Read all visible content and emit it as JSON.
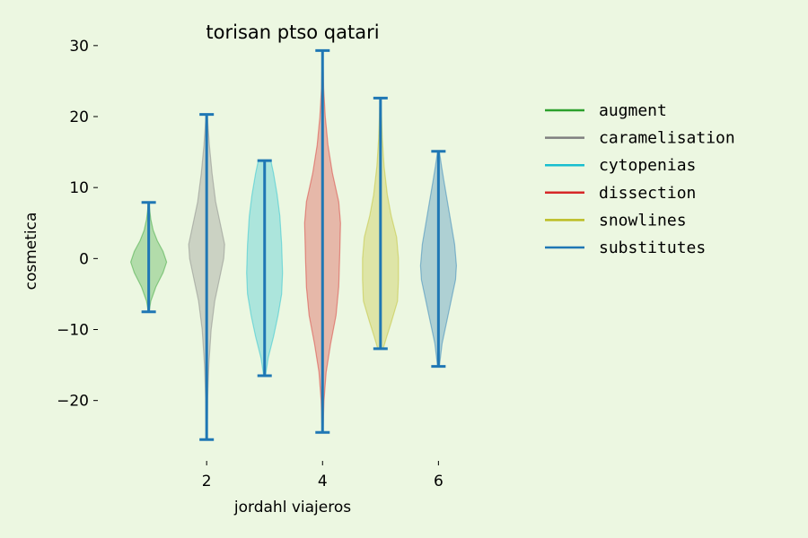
{
  "chart_data": {
    "type": "violin",
    "title": "torisan ptso qatari",
    "xlabel": "jordahl viajeros",
    "ylabel": "cosmetica",
    "xlim": [
      0.2,
      6.8
    ],
    "ylim": [
      -28,
      32
    ],
    "xticks": [
      2,
      4,
      6
    ],
    "yticks": [
      -20,
      -10,
      0,
      10,
      20,
      30
    ],
    "grid": false,
    "legend_position": "right",
    "whisker_color": "#1f77b4",
    "series": [
      {
        "name": "augment",
        "position": 1,
        "color": "#2ca02c",
        "min": -7.5,
        "max": 7.9,
        "profile": [
          [
            -7.5,
            0.02
          ],
          [
            -6,
            0.12
          ],
          [
            -4,
            0.4
          ],
          [
            -2,
            0.8
          ],
          [
            -0.5,
            1.0
          ],
          [
            1,
            0.8
          ],
          [
            2.5,
            0.48
          ],
          [
            4,
            0.25
          ],
          [
            5.5,
            0.12
          ],
          [
            7,
            0.05
          ],
          [
            7.9,
            0.02
          ]
        ]
      },
      {
        "name": "caramelisation",
        "position": 2,
        "color": "#7f7f7f",
        "min": -25.5,
        "max": 20.3,
        "profile": [
          [
            -25.5,
            0.02
          ],
          [
            -20,
            0.05
          ],
          [
            -15,
            0.12
          ],
          [
            -10,
            0.25
          ],
          [
            -6,
            0.45
          ],
          [
            -3,
            0.7
          ],
          [
            0,
            0.95
          ],
          [
            2,
            1.0
          ],
          [
            5,
            0.75
          ],
          [
            8,
            0.5
          ],
          [
            12,
            0.3
          ],
          [
            16,
            0.15
          ],
          [
            20.3,
            0.03
          ]
        ]
      },
      {
        "name": "cytopenias",
        "position": 3,
        "color": "#17becf",
        "min": -16.5,
        "max": 13.8,
        "profile": [
          [
            -16.5,
            0.05
          ],
          [
            -14,
            0.2
          ],
          [
            -11,
            0.5
          ],
          [
            -8,
            0.75
          ],
          [
            -5,
            0.95
          ],
          [
            -2,
            1.0
          ],
          [
            2,
            0.95
          ],
          [
            6,
            0.85
          ],
          [
            9,
            0.7
          ],
          [
            12,
            0.5
          ],
          [
            13.8,
            0.35
          ]
        ]
      },
      {
        "name": "dissection",
        "position": 4,
        "color": "#d62728",
        "min": -24.5,
        "max": 29.3,
        "profile": [
          [
            -24.5,
            0.02
          ],
          [
            -20,
            0.08
          ],
          [
            -16,
            0.2
          ],
          [
            -12,
            0.45
          ],
          [
            -8,
            0.75
          ],
          [
            -4,
            0.9
          ],
          [
            0,
            0.95
          ],
          [
            5,
            1.0
          ],
          [
            8,
            0.9
          ],
          [
            12,
            0.55
          ],
          [
            16,
            0.3
          ],
          [
            20,
            0.15
          ],
          [
            24,
            0.06
          ],
          [
            29.3,
            0.01
          ]
        ]
      },
      {
        "name": "snowlines",
        "position": 5,
        "color": "#bcbd22",
        "min": -12.7,
        "max": 22.6,
        "profile": [
          [
            -12.7,
            0.15
          ],
          [
            -11,
            0.35
          ],
          [
            -9,
            0.6
          ],
          [
            -6,
            0.95
          ],
          [
            -3,
            1.0
          ],
          [
            0,
            1.0
          ],
          [
            3,
            0.9
          ],
          [
            6,
            0.6
          ],
          [
            9,
            0.38
          ],
          [
            13,
            0.2
          ],
          [
            17,
            0.1
          ],
          [
            22.6,
            0.02
          ]
        ]
      },
      {
        "name": "substitutes",
        "position": 6,
        "color": "#1f77b4",
        "min": -15.2,
        "max": 15.1,
        "profile": [
          [
            -15.2,
            0.05
          ],
          [
            -12,
            0.2
          ],
          [
            -9,
            0.45
          ],
          [
            -6,
            0.7
          ],
          [
            -3,
            0.95
          ],
          [
            -1,
            1.0
          ],
          [
            2,
            0.9
          ],
          [
            5,
            0.7
          ],
          [
            8,
            0.5
          ],
          [
            11,
            0.3
          ],
          [
            13,
            0.17
          ],
          [
            15.1,
            0.05
          ]
        ]
      }
    ]
  }
}
